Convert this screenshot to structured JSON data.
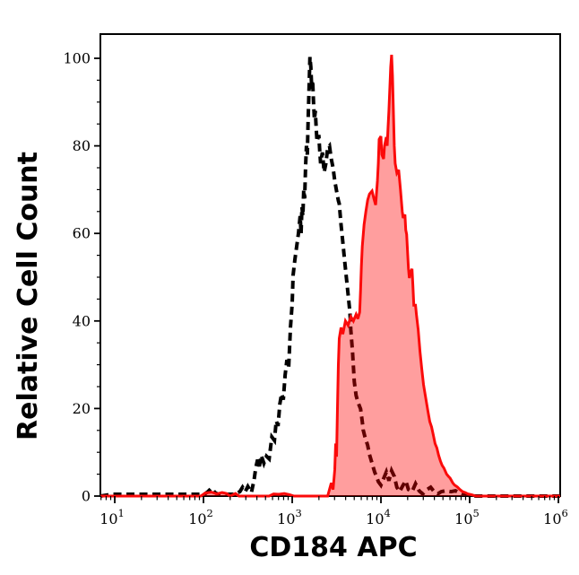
{
  "figure": {
    "background_color": "#ffffff",
    "frame_color": "#000000"
  },
  "chart_data": {
    "type": "area",
    "subtype": "flow-cytometry-histogram-overlay",
    "title": "",
    "xlabel": "CD184 APC",
    "ylabel": "Relative Cell Count",
    "x_scale": "log10",
    "xlim_log10": [
      0.838,
      6.02
    ],
    "ylim": [
      0,
      105.5
    ],
    "x_tick_base": "10",
    "x_ticks_exponents": [
      1,
      2,
      3,
      4,
      5,
      6
    ],
    "x_minor_ticks": "log decades 2-9",
    "y_ticks": [
      0,
      20,
      40,
      60,
      80,
      100
    ],
    "y_minor_step": 5,
    "grid": "off",
    "legend": "none",
    "series": [
      {
        "name": "control-unfilled-black-dashed",
        "line_color": "#000000",
        "line_style": "dashed",
        "fill_color": "none",
        "points_log10x_count": [
          [
            0.84,
            0
          ],
          [
            0.97,
            0.4
          ],
          [
            2.01,
            0.4
          ],
          [
            2.05,
            1.0
          ],
          [
            2.09,
            1.8
          ],
          [
            2.13,
            0.8
          ],
          [
            2.17,
            0.3
          ],
          [
            2.25,
            0.4
          ],
          [
            2.35,
            0.4
          ],
          [
            2.41,
            1.0
          ],
          [
            2.44,
            2.0
          ],
          [
            2.47,
            1.0
          ],
          [
            2.5,
            2.2
          ],
          [
            2.54,
            0.8
          ],
          [
            2.57,
            3.7
          ],
          [
            2.59,
            6.5
          ],
          [
            2.61,
            8.3
          ],
          [
            2.63,
            6.8
          ],
          [
            2.65,
            9.3
          ],
          [
            2.68,
            7.5
          ],
          [
            2.71,
            9.1
          ],
          [
            2.74,
            8.5
          ],
          [
            2.77,
            13.5
          ],
          [
            2.8,
            12.7
          ],
          [
            2.82,
            17.2
          ],
          [
            2.84,
            16.0
          ],
          [
            2.86,
            21.0
          ],
          [
            2.88,
            23.4
          ],
          [
            2.9,
            22.0
          ],
          [
            2.92,
            27.6
          ],
          [
            2.94,
            31.1
          ],
          [
            2.96,
            29.5
          ],
          [
            2.98,
            38.6
          ],
          [
            3.0,
            44.0
          ],
          [
            3.01,
            50.4
          ],
          [
            3.03,
            54.0
          ],
          [
            3.05,
            57.0
          ],
          [
            3.07,
            60.0
          ],
          [
            3.09,
            64.0
          ],
          [
            3.1,
            60.0
          ],
          [
            3.11,
            66.0
          ],
          [
            3.12,
            64.0
          ],
          [
            3.13,
            70.0
          ],
          [
            3.14,
            68.0
          ],
          [
            3.15,
            75.0
          ],
          [
            3.16,
            80.0
          ],
          [
            3.17,
            78.0
          ],
          [
            3.18,
            86.0
          ],
          [
            3.19,
            93.0
          ],
          [
            3.2,
            100.3
          ],
          [
            3.21,
            98.0
          ],
          [
            3.22,
            93.0
          ],
          [
            3.23,
            95.0
          ],
          [
            3.24,
            90.0
          ],
          [
            3.25,
            86.0
          ],
          [
            3.26,
            88.0
          ],
          [
            3.27,
            84.0
          ],
          [
            3.28,
            81.0
          ],
          [
            3.3,
            82.5
          ],
          [
            3.31,
            79.0
          ],
          [
            3.32,
            76.0
          ],
          [
            3.34,
            78.5
          ],
          [
            3.36,
            74.0
          ],
          [
            3.38,
            76.0
          ],
          [
            3.4,
            79.5
          ],
          [
            3.42,
            80.0
          ],
          [
            3.44,
            77.0
          ],
          [
            3.46,
            75.0
          ],
          [
            3.48,
            72.0
          ],
          [
            3.5,
            69.7
          ],
          [
            3.52,
            67.5
          ],
          [
            3.53,
            66.8
          ],
          [
            3.55,
            62.0
          ],
          [
            3.57,
            58.0
          ],
          [
            3.59,
            54.0
          ],
          [
            3.61,
            50.0
          ],
          [
            3.63,
            46.0
          ],
          [
            3.65,
            42.0
          ],
          [
            3.66,
            38.0
          ],
          [
            3.68,
            33.0
          ],
          [
            3.7,
            26.1
          ],
          [
            3.72,
            23.0
          ],
          [
            3.74,
            21.5
          ],
          [
            3.77,
            19.9
          ],
          [
            3.79,
            17.0
          ],
          [
            3.8,
            15.1
          ],
          [
            3.82,
            13.5
          ],
          [
            3.85,
            11.6
          ],
          [
            3.87,
            9.5
          ],
          [
            3.9,
            7.5
          ],
          [
            3.93,
            5.4
          ],
          [
            3.95,
            4.5
          ],
          [
            3.97,
            3.3
          ],
          [
            4.0,
            2.5
          ],
          [
            4.03,
            4.0
          ],
          [
            4.06,
            5.5
          ],
          [
            4.09,
            3.5
          ],
          [
            4.12,
            5.8
          ],
          [
            4.15,
            4.5
          ],
          [
            4.18,
            2.0
          ],
          [
            4.21,
            1.0
          ],
          [
            4.25,
            2.5
          ],
          [
            4.28,
            3.5
          ],
          [
            4.31,
            1.5
          ],
          [
            4.35,
            1.0
          ],
          [
            4.39,
            2.8
          ],
          [
            4.43,
            1.2
          ],
          [
            4.47,
            0.5
          ],
          [
            4.52,
            1.5
          ],
          [
            4.56,
            2.0
          ],
          [
            4.6,
            1.0
          ],
          [
            4.64,
            0.5
          ],
          [
            4.68,
            1.0
          ],
          [
            4.73,
            1.2
          ],
          [
            4.79,
            1.0
          ],
          [
            4.84,
            1.2
          ],
          [
            4.88,
            0.8
          ],
          [
            4.93,
            0.4
          ],
          [
            4.98,
            0.2
          ],
          [
            5.07,
            0
          ],
          [
            6.02,
            0
          ]
        ]
      },
      {
        "name": "stained-filled-red-solid",
        "line_color": "#fb0a0a",
        "line_style": "solid",
        "fill_color": "rgba(255,0,0,0.38)",
        "points_log10x_count": [
          [
            0.84,
            0
          ],
          [
            1.97,
            0
          ],
          [
            2.02,
            0.7
          ],
          [
            2.09,
            0.9
          ],
          [
            2.15,
            0.5
          ],
          [
            2.21,
            0.8
          ],
          [
            2.26,
            0.6
          ],
          [
            2.3,
            0
          ],
          [
            2.36,
            0.6
          ],
          [
            2.4,
            0
          ],
          [
            2.74,
            0
          ],
          [
            2.79,
            0.5
          ],
          [
            2.85,
            0.4
          ],
          [
            2.91,
            0.6
          ],
          [
            2.97,
            0.3
          ],
          [
            3.02,
            0
          ],
          [
            3.4,
            0
          ],
          [
            3.42,
            1.5
          ],
          [
            3.44,
            3.0
          ],
          [
            3.46,
            1.5
          ],
          [
            3.48,
            6.0
          ],
          [
            3.49,
            12.0
          ],
          [
            3.5,
            9.0
          ],
          [
            3.51,
            20.0
          ],
          [
            3.52,
            30.0
          ],
          [
            3.53,
            36.0
          ],
          [
            3.55,
            38.5
          ],
          [
            3.57,
            37.0
          ],
          [
            3.6,
            40.0
          ],
          [
            3.63,
            39.0
          ],
          [
            3.66,
            41.0
          ],
          [
            3.69,
            40.0
          ],
          [
            3.72,
            41.5
          ],
          [
            3.74,
            40.5
          ],
          [
            3.76,
            42.0
          ],
          [
            3.77,
            47.0
          ],
          [
            3.78,
            52.5
          ],
          [
            3.79,
            57.0
          ],
          [
            3.81,
            62.0
          ],
          [
            3.83,
            65.0
          ],
          [
            3.85,
            67.6
          ],
          [
            3.87,
            69.0
          ],
          [
            3.9,
            69.7
          ],
          [
            3.92,
            68.0
          ],
          [
            3.94,
            66.5
          ],
          [
            3.96,
            72.0
          ],
          [
            3.97,
            76.0
          ],
          [
            3.98,
            81.5
          ],
          [
            4.0,
            82.2
          ],
          [
            4.01,
            78.0
          ],
          [
            4.03,
            77.0
          ],
          [
            4.04,
            80.0
          ],
          [
            4.06,
            82.0
          ],
          [
            4.07,
            80.0
          ],
          [
            4.08,
            84.0
          ],
          [
            4.09,
            88.0
          ],
          [
            4.1,
            93.0
          ],
          [
            4.11,
            98.0
          ],
          [
            4.12,
            100.8
          ],
          [
            4.13,
            96.0
          ],
          [
            4.14,
            88.0
          ],
          [
            4.15,
            80.0
          ],
          [
            4.16,
            76.0
          ],
          [
            4.18,
            73.8
          ],
          [
            4.2,
            74.5
          ],
          [
            4.22,
            70.0
          ],
          [
            4.24,
            65.0
          ],
          [
            4.25,
            63.5
          ],
          [
            4.27,
            64.3
          ],
          [
            4.28,
            60.8
          ],
          [
            4.29,
            59.8
          ],
          [
            4.31,
            52.0
          ],
          [
            4.32,
            49.8
          ],
          [
            4.33,
            51.0
          ],
          [
            4.35,
            51.9
          ],
          [
            4.36,
            48.0
          ],
          [
            4.37,
            43.6
          ],
          [
            4.39,
            43.6
          ],
          [
            4.4,
            41.5
          ],
          [
            4.42,
            38.0
          ],
          [
            4.44,
            33.0
          ],
          [
            4.46,
            29.0
          ],
          [
            4.48,
            25.5
          ],
          [
            4.5,
            23.0
          ],
          [
            4.53,
            19.3
          ],
          [
            4.55,
            17.0
          ],
          [
            4.57,
            15.8
          ],
          [
            4.59,
            14.0
          ],
          [
            4.61,
            12.0
          ],
          [
            4.63,
            11.0
          ],
          [
            4.65,
            9.3
          ],
          [
            4.67,
            8.0
          ],
          [
            4.69,
            7.0
          ],
          [
            4.71,
            6.4
          ],
          [
            4.74,
            5.0
          ],
          [
            4.76,
            4.5
          ],
          [
            4.78,
            4.1
          ],
          [
            4.81,
            3.0
          ],
          [
            4.83,
            2.5
          ],
          [
            4.86,
            2.1
          ],
          [
            4.89,
            1.5
          ],
          [
            4.92,
            1.0
          ],
          [
            4.95,
            0.8
          ],
          [
            4.98,
            0.5
          ],
          [
            5.02,
            0.3
          ],
          [
            5.07,
            0
          ],
          [
            6.02,
            0
          ]
        ]
      }
    ]
  }
}
